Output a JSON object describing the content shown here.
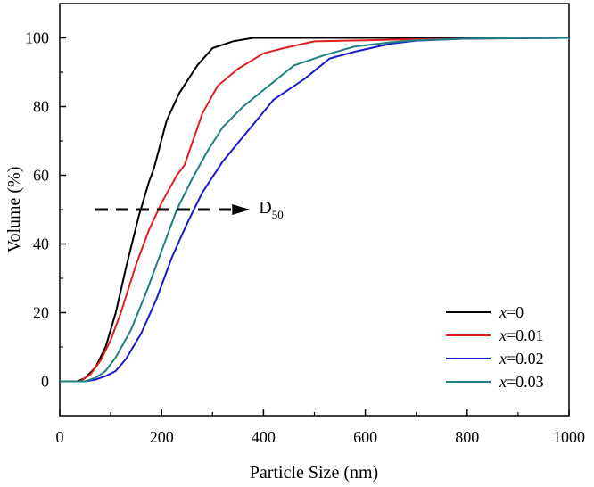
{
  "chart_data": {
    "type": "line",
    "title": "",
    "xlabel": "Particle Size (nm)",
    "ylabel": "Volume (%)",
    "xlim": [
      0,
      1000
    ],
    "ylim": [
      -10,
      110
    ],
    "xticks": [
      0,
      200,
      400,
      600,
      800,
      1000
    ],
    "yticks": [
      0,
      20,
      40,
      60,
      80,
      100
    ],
    "grid": false,
    "legend_position": "bottom-right",
    "series": [
      {
        "name": "x=0",
        "legend_prefix": "x",
        "legend_suffix": "=0",
        "color": "#000000",
        "points": [
          [
            0,
            0
          ],
          [
            35,
            0
          ],
          [
            50,
            1
          ],
          [
            70,
            4
          ],
          [
            90,
            10
          ],
          [
            110,
            20
          ],
          [
            130,
            33
          ],
          [
            155,
            48
          ],
          [
            175,
            58
          ],
          [
            185,
            62
          ],
          [
            210,
            76
          ],
          [
            235,
            84
          ],
          [
            270,
            92
          ],
          [
            300,
            97
          ],
          [
            340,
            99
          ],
          [
            380,
            100
          ],
          [
            500,
            100
          ],
          [
            1000,
            100
          ]
        ]
      },
      {
        "name": "x=0.01",
        "legend_prefix": "x",
        "legend_suffix": "=0.01",
        "color": "#e02020",
        "points": [
          [
            0,
            0
          ],
          [
            40,
            0
          ],
          [
            60,
            2
          ],
          [
            80,
            6
          ],
          [
            100,
            12
          ],
          [
            120,
            20
          ],
          [
            150,
            34
          ],
          [
            175,
            44
          ],
          [
            200,
            52
          ],
          [
            230,
            60
          ],
          [
            245,
            63
          ],
          [
            280,
            78
          ],
          [
            310,
            86
          ],
          [
            350,
            91
          ],
          [
            400,
            95.5
          ],
          [
            440,
            97
          ],
          [
            500,
            99
          ],
          [
            600,
            99.3
          ],
          [
            700,
            99.6
          ],
          [
            1000,
            100
          ]
        ]
      },
      {
        "name": "x=0.02",
        "legend_prefix": "x",
        "legend_suffix": "=0.02",
        "color": "#1a1acc",
        "points": [
          [
            0,
            0
          ],
          [
            50,
            0
          ],
          [
            70,
            0.5
          ],
          [
            90,
            1.5
          ],
          [
            110,
            3
          ],
          [
            130,
            6.5
          ],
          [
            160,
            14
          ],
          [
            190,
            24
          ],
          [
            220,
            36
          ],
          [
            250,
            46
          ],
          [
            280,
            55
          ],
          [
            320,
            64
          ],
          [
            370,
            73
          ],
          [
            420,
            82
          ],
          [
            480,
            88
          ],
          [
            530,
            94
          ],
          [
            580,
            96
          ],
          [
            650,
            98.3
          ],
          [
            700,
            99.2
          ],
          [
            800,
            99.8
          ],
          [
            1000,
            100
          ]
        ]
      },
      {
        "name": "x=0.03",
        "legend_prefix": "x",
        "legend_suffix": "=0.03",
        "color": "#1e8080",
        "points": [
          [
            0,
            0
          ],
          [
            50,
            0
          ],
          [
            70,
            1
          ],
          [
            90,
            3
          ],
          [
            110,
            7
          ],
          [
            140,
            15
          ],
          [
            170,
            26
          ],
          [
            200,
            38
          ],
          [
            230,
            50
          ],
          [
            260,
            59
          ],
          [
            290,
            67
          ],
          [
            320,
            74
          ],
          [
            360,
            80
          ],
          [
            410,
            86
          ],
          [
            460,
            92
          ],
          [
            520,
            95
          ],
          [
            580,
            97.5
          ],
          [
            650,
            98.7
          ],
          [
            700,
            99.3
          ],
          [
            800,
            99.8
          ],
          [
            1000,
            100
          ]
        ]
      }
    ],
    "annotation": {
      "text_main": "D",
      "text_sub": "50",
      "arrow_from": [
        70,
        50
      ],
      "arrow_to": [
        370,
        50
      ]
    }
  }
}
